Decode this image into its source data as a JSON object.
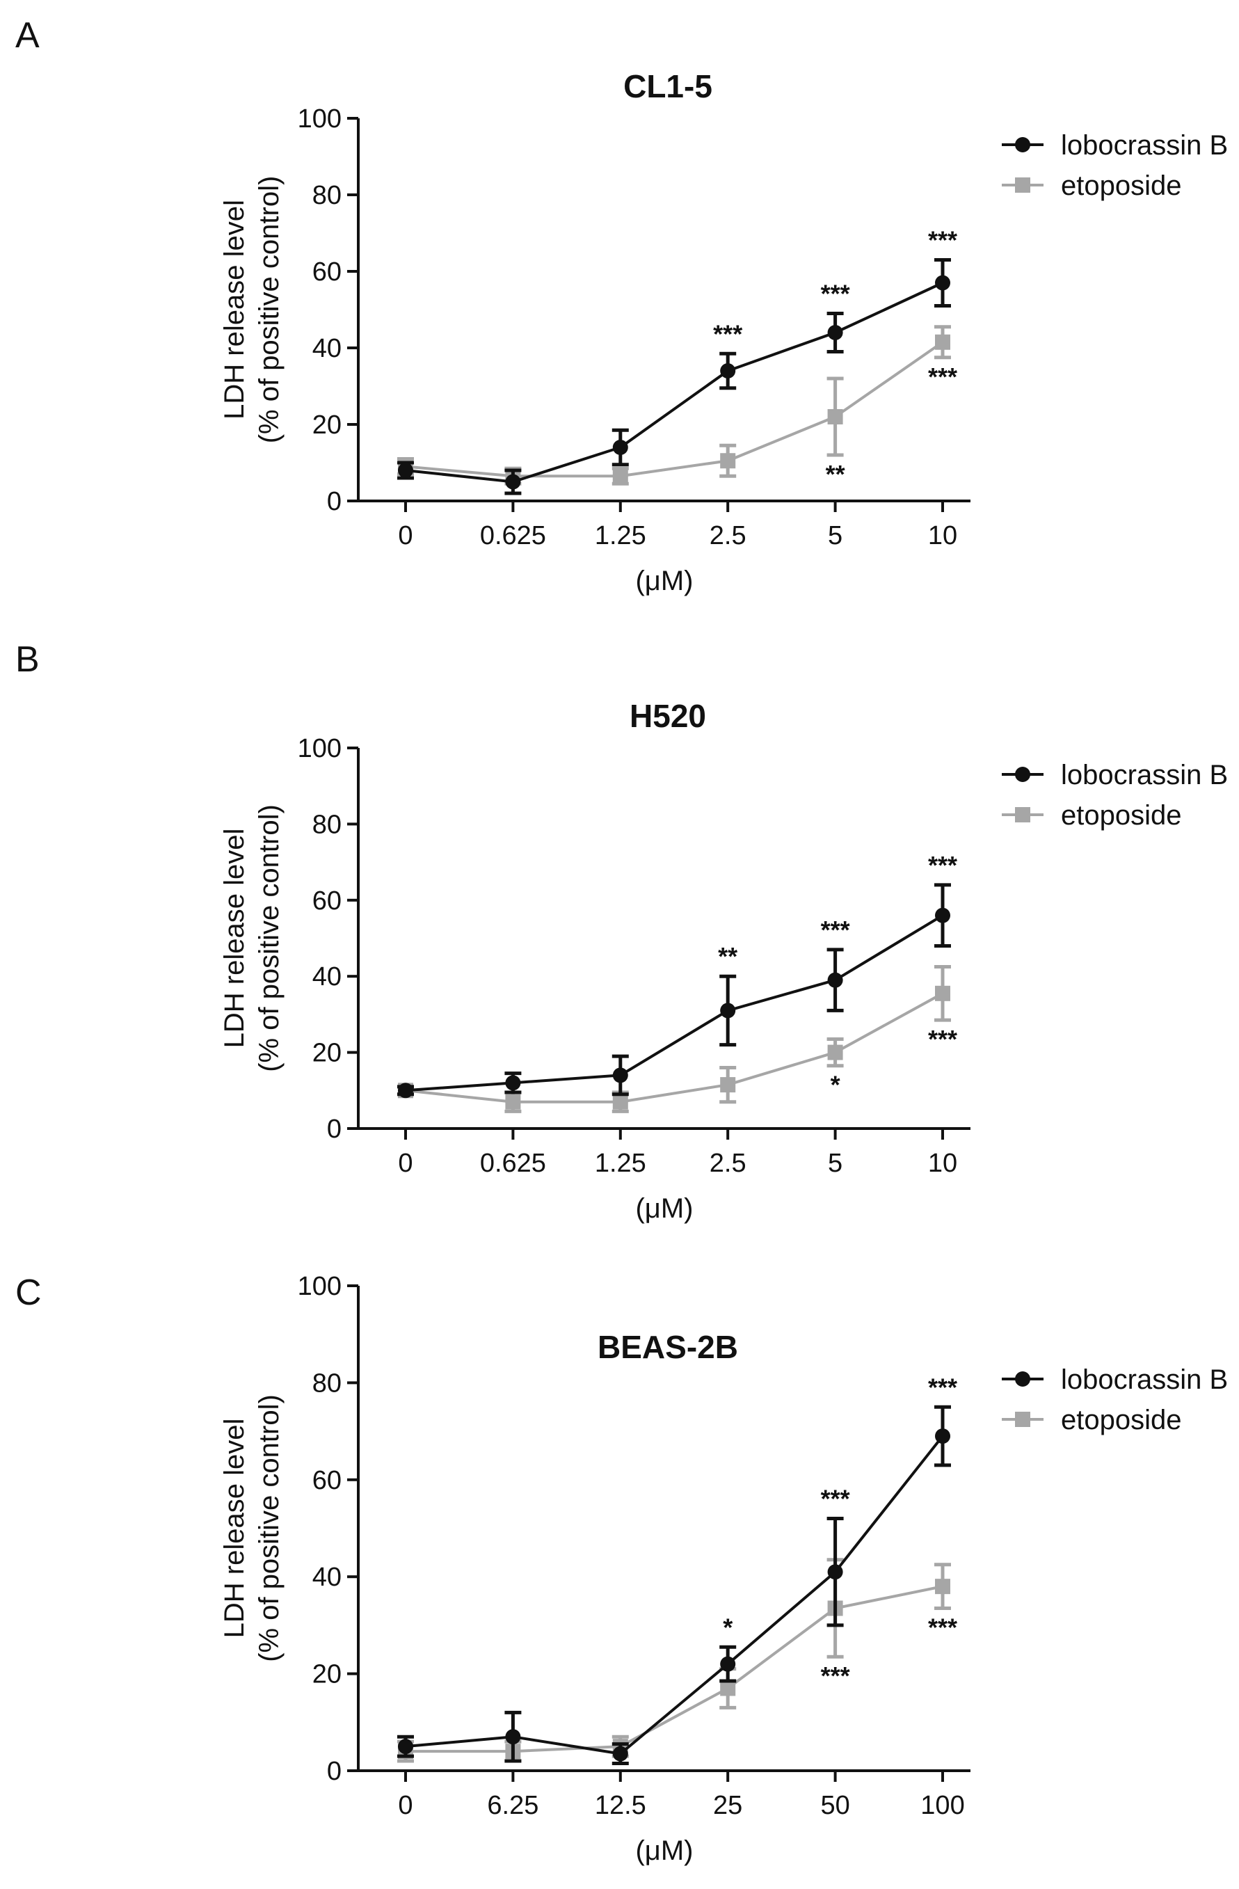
{
  "chart_data": [
    {
      "type": "line",
      "panel": "A",
      "title": "CL1-5",
      "ylabel": "LDH release level\n(% of positive control)",
      "xlabel": "(μM)",
      "ylim": [
        0,
        100
      ],
      "yticks": [
        0,
        20,
        40,
        60,
        80,
        100
      ],
      "categories": [
        "0",
        "0.625",
        "1.25",
        "2.5",
        "5",
        "10"
      ],
      "series": [
        {
          "name": "lobocrassin B",
          "color": "#111111",
          "marker": "circle",
          "values": [
            8,
            5,
            14,
            34,
            44,
            57
          ],
          "errors": [
            2,
            3,
            4.5,
            4.5,
            5,
            6
          ],
          "sig": [
            "",
            "",
            "",
            "***",
            "***",
            "***"
          ]
        },
        {
          "name": "etoposide",
          "color": "#a6a6a6",
          "marker": "square",
          "values": [
            9,
            6.5,
            6.5,
            10.5,
            22,
            41.5
          ],
          "errors": [
            2,
            2,
            2,
            4,
            10,
            4
          ],
          "sig": [
            "",
            "",
            "",
            "",
            "**",
            "***"
          ]
        }
      ]
    },
    {
      "type": "line",
      "panel": "B",
      "title": "H520",
      "ylabel": "LDH release level\n(% of positive control)",
      "xlabel": "(μM)",
      "ylim": [
        0,
        100
      ],
      "yticks": [
        0,
        20,
        40,
        60,
        80,
        100
      ],
      "categories": [
        "0",
        "0.625",
        "1.25",
        "2.5",
        "5",
        "10"
      ],
      "series": [
        {
          "name": "lobocrassin B",
          "color": "#111111",
          "marker": "circle",
          "values": [
            10,
            12,
            14,
            31,
            39,
            56
          ],
          "errors": [
            1,
            2.5,
            5,
            9,
            8,
            8
          ],
          "sig": [
            "",
            "",
            "",
            "**",
            "***",
            "***"
          ]
        },
        {
          "name": "etoposide",
          "color": "#a6a6a6",
          "marker": "square",
          "values": [
            10,
            7,
            7,
            11.5,
            20,
            35.5
          ],
          "errors": [
            1,
            2.5,
            2.5,
            4.5,
            3.5,
            7
          ],
          "sig": [
            "",
            "",
            "",
            "",
            "*",
            "***"
          ]
        }
      ]
    },
    {
      "type": "line",
      "panel": "C",
      "title": "BEAS-2B",
      "ylabel": "LDH release level\n(% of positive control)",
      "xlabel": "(μM)",
      "ylim": [
        0,
        100
      ],
      "yticks": [
        0,
        20,
        40,
        60,
        80,
        100
      ],
      "categories": [
        "0",
        "6.25",
        "12.5",
        "25",
        "50",
        "100"
      ],
      "series": [
        {
          "name": "lobocrassin B",
          "color": "#111111",
          "marker": "circle",
          "values": [
            5,
            7,
            3.5,
            22,
            41,
            69
          ],
          "errors": [
            2,
            5,
            2,
            3.5,
            11,
            6
          ],
          "sig": [
            "",
            "",
            "",
            "*",
            "***",
            "***"
          ]
        },
        {
          "name": "etoposide",
          "color": "#a6a6a6",
          "marker": "square",
          "values": [
            4,
            4,
            5,
            17,
            33.5,
            38
          ],
          "errors": [
            2,
            2,
            2,
            4,
            10,
            4.5
          ],
          "sig": [
            "",
            "",
            "",
            "",
            "***",
            "***"
          ]
        }
      ]
    }
  ]
}
